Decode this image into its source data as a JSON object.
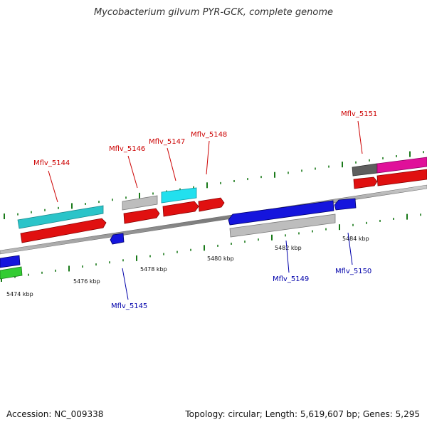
{
  "title": "Mycobacterium gilvum PYR-GCK, complete genome",
  "footer": {
    "accession": "Accession: NC_009338",
    "summary": "Topology: circular; Length: 5,619,607 bp; Genes: 5,295"
  },
  "colors": {
    "forward_label": "#cc0000",
    "reverse_label": "#0000aa",
    "tick": "#1a7a1a",
    "backbone": "#8a8a8a"
  },
  "scale": {
    "unit": "kbp",
    "labels": [
      "5474 kbp",
      "5476 kbp",
      "5478 kbp",
      "5480 kbp",
      "5482 kbp",
      "5484 kbp"
    ]
  },
  "genes": [
    {
      "label": "Mflv_5144",
      "strand": "forward",
      "color": "#2bc4c9"
    },
    {
      "label": "Mflv_5145",
      "strand": "reverse",
      "color": "#1515dd"
    },
    {
      "label": "Mflv_5146",
      "strand": "forward",
      "color": "#bdbdbd"
    },
    {
      "label": "Mflv_5147",
      "strand": "forward",
      "color": "#22e0ee"
    },
    {
      "label": "Mflv_5148",
      "strand": "forward",
      "color": "#e01010"
    },
    {
      "label": "Mflv_5149",
      "strand": "reverse",
      "color": "#1515dd"
    },
    {
      "label": "Mflv_5150",
      "strand": "reverse",
      "color": "#1515dd"
    },
    {
      "label": "Mflv_5151",
      "strand": "forward",
      "color": "#e0109a"
    }
  ]
}
